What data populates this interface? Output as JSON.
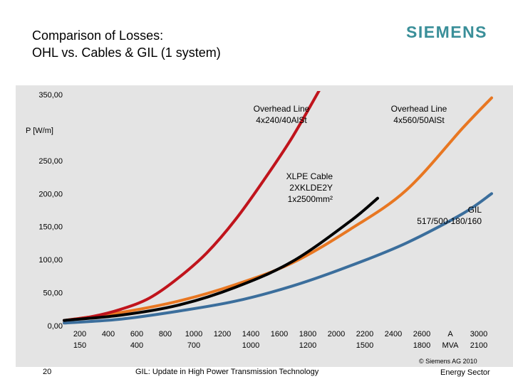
{
  "header": {
    "title_line1": "Comparison of Losses:",
    "title_line2": "OHL vs. Cables & GIL (1 system)",
    "logo": "SIEMENS",
    "brand_color": "#3a8f99"
  },
  "chart_data": {
    "type": "line",
    "title": "",
    "ylabel": "P [W/m]",
    "xlabel": "",
    "ylim": [
      0,
      350
    ],
    "xlim": [
      0,
      3000
    ],
    "y_ticks": [
      "0,00",
      "50,00",
      "100,00",
      "150,00",
      "200,00",
      "250,00",
      "350,00"
    ],
    "y_tick_values": [
      0,
      50,
      100,
      150,
      200,
      250,
      350
    ],
    "x_ticks_top": [
      "200",
      "400",
      "600",
      "800",
      "1000",
      "1200",
      "1400",
      "1600",
      "1800",
      "2000",
      "2200",
      "2400",
      "2600",
      "A",
      "3000"
    ],
    "x_ticks_bottom": [
      "150",
      "400",
      "700",
      "1000",
      "1200",
      "1500",
      "1800",
      "MVA",
      "2100"
    ],
    "series": [
      {
        "name": "Overhead Line 4x240/40AlSt",
        "color": "#c0141c",
        "x": [
          0,
          200,
          400,
          600,
          800,
          1000,
          1200,
          1400,
          1600,
          1800
        ],
        "y": [
          8,
          14,
          25,
          42,
          72,
          110,
          160,
          220,
          285,
          360
        ]
      },
      {
        "name": "Overhead Line 4x560/50AlSt",
        "color": "#e87722",
        "x": [
          0,
          400,
          800,
          1200,
          1600,
          2000,
          2400,
          2800,
          3000
        ],
        "y": [
          8,
          20,
          37,
          62,
          95,
          145,
          205,
          300,
          345
        ]
      },
      {
        "name": "XLPE Cable 2XKLDE2Y 1x2500mm²",
        "color": "#000000",
        "x": [
          0,
          400,
          800,
          1200,
          1600,
          2000,
          2200
        ],
        "y": [
          8,
          16,
          31,
          58,
          97,
          157,
          193
        ]
      },
      {
        "name": "GIL 517/500-180/160",
        "color": "#3b6e9c",
        "x": [
          0,
          400,
          800,
          1200,
          1600,
          2000,
          2400,
          2800,
          3000
        ],
        "y": [
          4,
          10,
          22,
          37,
          60,
          90,
          125,
          170,
          200
        ]
      }
    ],
    "annotations": [
      {
        "series": 0,
        "lines": [
          "Overhead Line",
          "4x240/40AlSt"
        ]
      },
      {
        "series": 1,
        "lines": [
          "Overhead Line",
          "4x560/50AlSt"
        ]
      },
      {
        "series": 2,
        "lines": [
          "XLPE Cable",
          "2XKLDE2Y",
          "1x2500mm²"
        ]
      },
      {
        "series": 3,
        "lines": [
          "GIL",
          "517/500-180/160"
        ]
      }
    ]
  },
  "footer": {
    "page_number": "20",
    "subtitle": "GIL: Update in High Power Transmission Technology",
    "copyright": "© Siemens AG 2010",
    "sector": "Energy Sector"
  }
}
